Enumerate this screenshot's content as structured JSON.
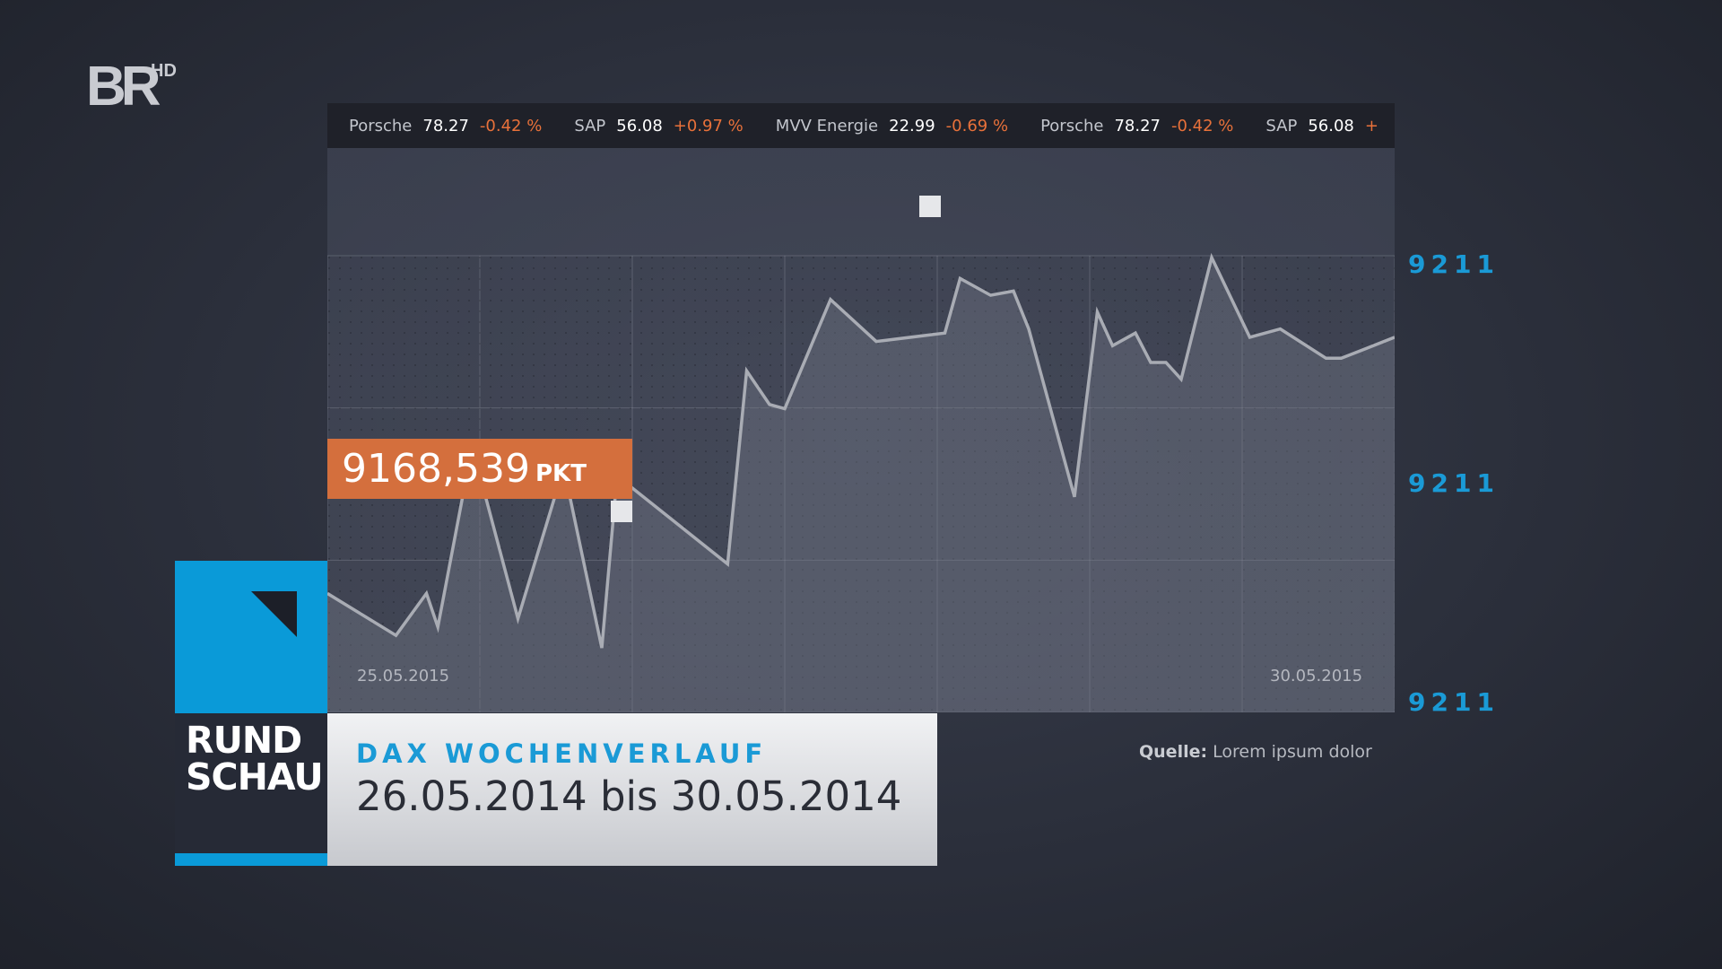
{
  "logo": {
    "text": "BR",
    "suffix": "HD"
  },
  "ticker": [
    {
      "name": "Porsche",
      "price": "78.27",
      "change": "-0.42 %"
    },
    {
      "name": "SAP",
      "price": "56.08",
      "change": "+0.97 %"
    },
    {
      "name": "MVV Energie",
      "price": "22.99",
      "change": "-0.69 %"
    },
    {
      "name": "Porsche",
      "price": "78.27",
      "change": "-0.42 %"
    },
    {
      "name": "SAP",
      "price": "56.08",
      "change": "+"
    }
  ],
  "y_axis_labels": [
    "9211",
    "9211",
    "9211"
  ],
  "callout": {
    "value": "9168,539",
    "unit": "PKT"
  },
  "date_start": "25.05.2015",
  "date_end": "30.05.2015",
  "brand": {
    "line1": "RUND",
    "line2": "SCHAU",
    "accent": "#0a9ad8"
  },
  "title": {
    "heading": "DAX WOCHENVERLAUF",
    "subheading": "26.05.2014 bis 30.05.2014"
  },
  "source": {
    "label": "Quelle:",
    "text": "Lorem ipsum dolor"
  },
  "colors": {
    "line": "#a9acb4",
    "callout": "#d46f3d",
    "axis_label": "#1a9ad6",
    "negative": "#e8713a"
  },
  "chart_data": {
    "type": "area",
    "title": "DAX WOCHENVERLAUF",
    "xlabel": "",
    "ylabel": "",
    "grid": true,
    "y_tick_labels": [
      "9211",
      "9211",
      "9211"
    ],
    "x_tick_labels": [
      "25.05.2015",
      "30.05.2015"
    ],
    "x": [
      0,
      0.9,
      1.3,
      1.45,
      1.9,
      2.5,
      3.1,
      3.6,
      3.8,
      5.25,
      5.5,
      5.8,
      6.0,
      6.6,
      7.2,
      8.1,
      8.3,
      8.7,
      9.0,
      9.2,
      9.8,
      10.1,
      10.3,
      10.6,
      10.8,
      11.0,
      11.2,
      11.6,
      12.1,
      12.5,
      13.1,
      13.3,
      14.0
    ],
    "values": [
      20,
      10,
      20,
      12,
      55,
      14,
      50,
      7,
      48,
      27,
      73,
      65,
      64,
      90,
      80,
      82,
      95,
      91,
      92,
      83,
      43,
      87,
      79,
      82,
      75,
      75,
      71,
      100,
      81,
      83,
      76,
      76,
      81
    ]
  }
}
